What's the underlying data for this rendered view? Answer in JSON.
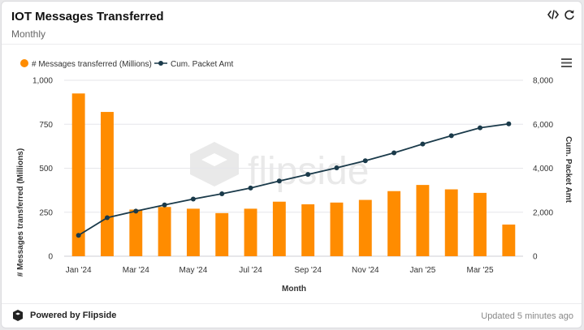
{
  "header": {
    "title": "IOT Messages Transferred",
    "subtitle": "Monthly",
    "embed_icon": "code-icon",
    "refresh_icon": "refresh-icon",
    "menu_icon": "hamburger-menu-icon"
  },
  "footer": {
    "powered_by": "Powered by Flipside",
    "updated": "Updated 5 minutes ago"
  },
  "watermark": "flipside",
  "chart_data": {
    "type": "bar",
    "xlabel": "Month",
    "categories": [
      "Jan '24",
      "Feb '24",
      "Mar '24",
      "Apr '24",
      "May '24",
      "Jun '24",
      "Jul '24",
      "Aug '24",
      "Sep '24",
      "Oct '24",
      "Nov '24",
      "Dec '24",
      "Jan '25",
      "Feb '25",
      "Mar '25",
      "Apr '25"
    ],
    "tick_labels": [
      "Jan '24",
      "Mar '24",
      "May '24",
      "Jul '24",
      "Sep '24",
      "Nov '24",
      "Jan '25",
      "Mar '25"
    ],
    "series": [
      {
        "name": "# Messages transferred (Millions)",
        "type": "bar",
        "axis": "left",
        "color": "#ff8c00",
        "values": [
          925,
          820,
          265,
          280,
          270,
          245,
          270,
          310,
          295,
          305,
          320,
          370,
          405,
          380,
          360,
          180
        ]
      },
      {
        "name": "Cum. Packet Amt",
        "type": "line",
        "axis": "right",
        "color": "#1a3a4a",
        "values": [
          950,
          1750,
          2050,
          2330,
          2600,
          2840,
          3100,
          3420,
          3720,
          4020,
          4340,
          4700,
          5100,
          5480,
          5840,
          6020
        ]
      }
    ],
    "y_left": {
      "label": "# Messages transferred (Millions)",
      "range": [
        0,
        1000
      ],
      "ticks": [
        "0",
        "250",
        "500",
        "750",
        "1,000"
      ]
    },
    "y_right": {
      "label": "Cum. Packet Amt",
      "range": [
        0,
        8000
      ],
      "ticks": [
        "0",
        "2,000",
        "4,000",
        "6,000",
        "8,000"
      ]
    },
    "grid": true,
    "legend": "top-left"
  }
}
